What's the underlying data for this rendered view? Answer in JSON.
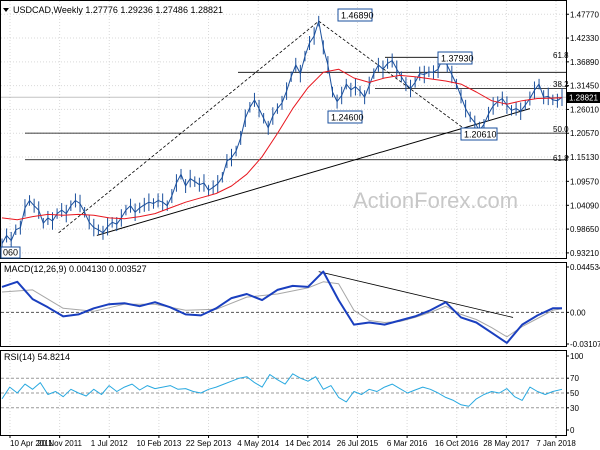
{
  "header": {
    "symbol_line": "USDCAD,Weekly  1.27776 1.29236 1.27486 1.28821",
    "watermark": "ActionForex.com"
  },
  "colors": {
    "price": "#1a4f9c",
    "ma": "#e8171f",
    "macd": "#1a3fbf",
    "signal": "#a7a7a7",
    "rsi": "#29a9e0",
    "trend": "#000000",
    "fib": "#000000",
    "grid": "#d9d9d9"
  },
  "chart_data": [
    {
      "type": "line",
      "panel": "price",
      "title": "USDCAD,Weekly  1.27776 1.29236 1.27486 1.28821",
      "x_labels": [
        "10 Apr 2011",
        "20 Nov 2011",
        "1 Jul 2012",
        "10 Feb 2013",
        "22 Sep 2013",
        "4 May 2014",
        "14 Dec 2014",
        "26 Jul 2015",
        "6 Mar 2016",
        "16 Oct 2016",
        "28 May 2017",
        "7 Jan 2018"
      ],
      "y_ticks": [
        "1.47770",
        "1.42330",
        "1.36890",
        "1.31450",
        "1.26010",
        "1.20570",
        "1.15130",
        "1.09570",
        "1.04090",
        "0.98650",
        "0.93210"
      ],
      "ylim": [
        0.925,
        1.492
      ],
      "last_price": "1.28821",
      "series": [
        {
          "role": "price",
          "x": [
            0,
            3,
            6,
            9,
            12,
            15,
            18,
            21,
            24,
            27,
            30,
            33,
            36,
            39,
            42,
            45,
            48,
            51,
            54,
            57,
            60,
            63,
            66,
            69,
            72,
            75,
            78,
            81,
            84,
            87,
            90,
            93,
            96,
            99,
            102,
            105,
            108,
            111,
            114,
            117,
            120,
            123,
            126,
            129,
            132,
            135,
            138,
            141,
            144,
            147,
            150,
            153,
            156,
            159,
            162,
            165,
            168,
            171,
            174,
            177,
            180,
            183,
            186,
            189,
            192,
            195,
            198,
            201,
            204,
            207,
            210,
            213,
            216,
            219,
            222,
            225,
            228,
            231,
            234,
            237,
            240,
            243,
            246,
            249,
            252,
            255,
            258,
            261,
            264,
            267,
            270,
            273,
            276,
            279,
            282,
            285,
            288,
            291,
            294,
            297,
            300,
            303,
            306,
            309,
            312,
            315,
            318,
            321,
            324,
            327,
            330,
            333,
            336,
            339,
            342,
            345,
            348,
            351,
            354,
            357,
            360,
            363,
            366
          ],
          "y": [
            0.953,
            0.972,
            0.96,
            0.985,
            0.99,
            1.035,
            1.052,
            1.04,
            1.03,
            1.0,
            1.012,
            1.005,
            1.022,
            1.03,
            1.022,
            1.04,
            1.052,
            1.045,
            1.025,
            1.002,
            0.99,
            0.985,
            0.978,
            0.992,
            1.002,
            0.998,
            1.012,
            1.03,
            1.04,
            1.025,
            1.035,
            1.042,
            1.048,
            1.045,
            1.052,
            1.048,
            1.04,
            1.062,
            1.092,
            1.112,
            1.085,
            1.102,
            1.095,
            1.088,
            1.092,
            1.075,
            1.082,
            1.09,
            1.105,
            1.142,
            1.15,
            1.165,
            1.195,
            1.24,
            1.265,
            1.282,
            1.262,
            1.24,
            1.218,
            1.245,
            1.262,
            1.275,
            1.302,
            1.335,
            1.362,
            1.342,
            1.382,
            1.412,
            1.428,
            1.462,
            1.402,
            1.362,
            1.3,
            1.278,
            1.292,
            1.318,
            1.305,
            1.312,
            1.302,
            1.288,
            1.315,
            1.342,
            1.362,
            1.352,
            1.365,
            1.372,
            1.352,
            1.335,
            1.318,
            1.308,
            1.322,
            1.342,
            1.34,
            1.346,
            1.345,
            1.352,
            1.378,
            1.361,
            1.34,
            1.318,
            1.29,
            1.262,
            1.243,
            1.23,
            1.212,
            1.226,
            1.25,
            1.268,
            1.278,
            1.285,
            1.27,
            1.258,
            1.262,
            1.256,
            1.27,
            1.285,
            1.304,
            1.318,
            1.288,
            1.29,
            1.282,
            1.28,
            1.288
          ]
        },
        {
          "role": "moving-average",
          "x": [
            0,
            10,
            20,
            30,
            40,
            50,
            60,
            70,
            80,
            90,
            100,
            110,
            120,
            130,
            140,
            150,
            160,
            170,
            180,
            190,
            200,
            210,
            220,
            230,
            240,
            250,
            260,
            270,
            280,
            290,
            300,
            310,
            320,
            330,
            340,
            350,
            360,
            366
          ],
          "y": [
            1.012,
            1.008,
            1.015,
            1.02,
            1.018,
            1.02,
            1.018,
            1.012,
            1.01,
            1.015,
            1.022,
            1.035,
            1.048,
            1.058,
            1.068,
            1.085,
            1.112,
            1.152,
            1.205,
            1.262,
            1.31,
            1.345,
            1.352,
            1.332,
            1.322,
            1.332,
            1.338,
            1.335,
            1.33,
            1.325,
            1.318,
            1.3,
            1.28,
            1.272,
            1.28,
            1.285,
            1.286,
            1.287
          ]
        }
      ],
      "annotations": [
        "1.46890",
        "1.37930",
        "1.24600",
        "1.20610",
        "61.8",
        "38.2",
        "50.0",
        "61.8",
        "1.28821",
        "060"
      ]
    },
    {
      "type": "line",
      "panel": "macd",
      "label": "MACD(12,26,9) 0.004130 0.003527",
      "y_ticks": [
        "0.044534",
        "0.00",
        "-0.031072"
      ],
      "ylim": [
        -0.031072,
        0.044534
      ],
      "series": [
        {
          "role": "macd",
          "x": [
            0,
            10,
            20,
            30,
            40,
            50,
            60,
            70,
            80,
            90,
            100,
            110,
            120,
            130,
            140,
            150,
            160,
            170,
            180,
            190,
            200,
            210,
            220,
            230,
            240,
            250,
            260,
            270,
            280,
            290,
            300,
            310,
            320,
            330,
            340,
            350,
            360,
            366
          ],
          "y": [
            0.025,
            0.03,
            0.013,
            0.005,
            -0.004,
            -0.002,
            0.004,
            0.008,
            0.009,
            0.006,
            0.01,
            0.005,
            -0.002,
            -0.003,
            0.004,
            0.014,
            0.018,
            0.012,
            0.022,
            0.026,
            0.025,
            0.04,
            0.012,
            -0.012,
            -0.01,
            -0.012,
            -0.008,
            -0.004,
            0.002,
            0.01,
            -0.005,
            -0.01,
            -0.02,
            -0.03,
            -0.012,
            -0.003,
            0.004,
            0.004
          ]
        },
        {
          "role": "signal",
          "x": [
            0,
            20,
            40,
            60,
            80,
            100,
            120,
            140,
            160,
            180,
            200,
            210,
            220,
            230,
            240,
            250,
            260,
            270,
            280,
            290,
            300,
            310,
            320,
            330,
            340,
            350,
            360,
            366
          ],
          "y": [
            0.02,
            0.022,
            0.004,
            0.001,
            0.008,
            0.008,
            0.002,
            0.003,
            0.015,
            0.018,
            0.024,
            0.03,
            0.028,
            0.002,
            -0.008,
            -0.01,
            -0.009,
            -0.005,
            0.0,
            0.006,
            -0.002,
            -0.007,
            -0.015,
            -0.024,
            -0.014,
            -0.006,
            0.002,
            0.0035
          ]
        }
      ]
    },
    {
      "type": "line",
      "panel": "rsi",
      "label": "RSI(14) 54.8214",
      "y_ticks": [
        "100",
        "70",
        "50",
        "30",
        "0"
      ],
      "ylim": [
        0,
        100
      ],
      "series": [
        {
          "role": "rsi",
          "x": [
            0,
            5,
            10,
            15,
            20,
            25,
            30,
            35,
            40,
            45,
            50,
            55,
            60,
            65,
            70,
            75,
            80,
            85,
            90,
            95,
            100,
            105,
            110,
            115,
            120,
            125,
            130,
            135,
            140,
            145,
            150,
            155,
            160,
            165,
            170,
            175,
            180,
            185,
            190,
            195,
            200,
            205,
            210,
            215,
            220,
            225,
            230,
            235,
            240,
            245,
            250,
            255,
            260,
            265,
            270,
            275,
            280,
            285,
            290,
            295,
            300,
            305,
            310,
            315,
            320,
            325,
            330,
            335,
            340,
            345,
            350,
            355,
            360,
            366
          ],
          "y": [
            42,
            58,
            50,
            62,
            55,
            64,
            48,
            52,
            45,
            55,
            50,
            46,
            55,
            48,
            60,
            52,
            58,
            62,
            54,
            60,
            56,
            58,
            60,
            55,
            56,
            52,
            50,
            55,
            58,
            62,
            66,
            70,
            72,
            64,
            58,
            75,
            68,
            62,
            76,
            70,
            66,
            72,
            55,
            60,
            44,
            38,
            52,
            48,
            55,
            52,
            58,
            62,
            56,
            50,
            54,
            58,
            55,
            50,
            44,
            40,
            34,
            32,
            42,
            48,
            52,
            50,
            56,
            45,
            40,
            58,
            52,
            48,
            52,
            55
          ]
        }
      ]
    }
  ]
}
